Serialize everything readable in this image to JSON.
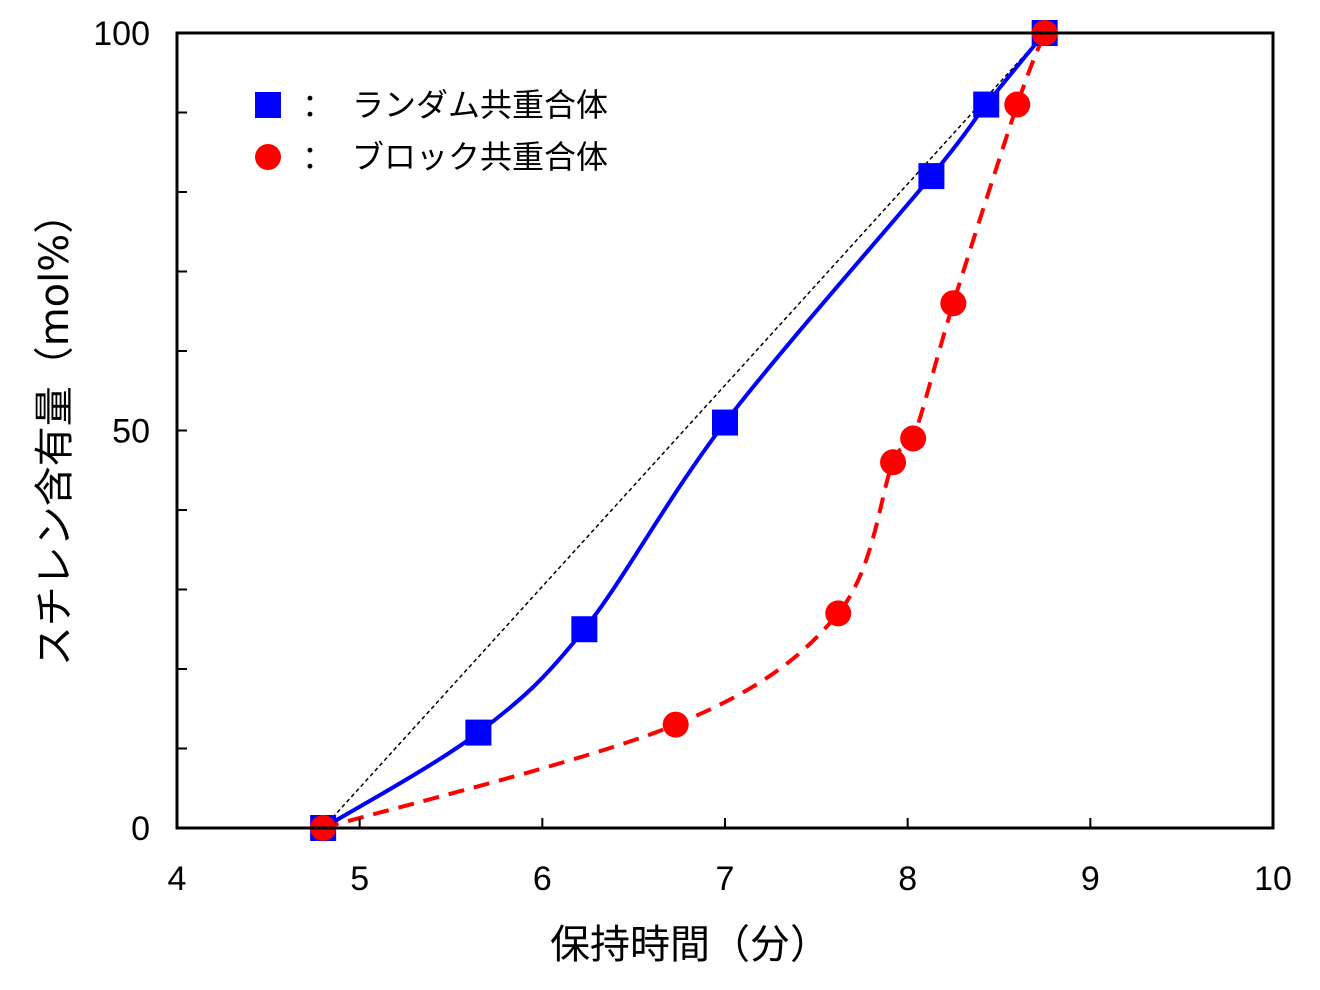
{
  "chart_data": {
    "type": "scatter",
    "xlabel": "保持時間（分）",
    "ylabel": "スチレン含有量（mol%）",
    "xlim": [
      4,
      10
    ],
    "ylim": [
      0,
      100
    ],
    "x_ticks": [
      "4",
      "5",
      "6",
      "7",
      "8",
      "9",
      "10"
    ],
    "y_ticks": [
      "0",
      "50",
      "100"
    ],
    "y_minor_step": 10,
    "grid": false,
    "legend_position": "top-left",
    "legend_separator": "：",
    "series": [
      {
        "name": "ランダム共重合体",
        "marker": "square",
        "color": "#0000ff",
        "line": "solid",
        "points": [
          [
            4.8,
            0
          ],
          [
            5.65,
            12
          ],
          [
            6.23,
            25
          ],
          [
            7.0,
            51
          ],
          [
            8.13,
            82
          ],
          [
            8.43,
            91
          ],
          [
            8.75,
            100
          ]
        ]
      },
      {
        "name": "ブロック共重合体",
        "marker": "circle",
        "color": "#ff0000",
        "line": "dashed",
        "points": [
          [
            4.8,
            0
          ],
          [
            6.73,
            13
          ],
          [
            7.62,
            27
          ],
          [
            7.92,
            46
          ],
          [
            8.03,
            49
          ],
          [
            8.25,
            66
          ],
          [
            8.6,
            91
          ],
          [
            8.75,
            100
          ]
        ]
      }
    ],
    "reference_line": {
      "color": "#000000",
      "line": "dotted",
      "points": [
        [
          4.8,
          0
        ],
        [
          8.75,
          100
        ]
      ]
    }
  }
}
